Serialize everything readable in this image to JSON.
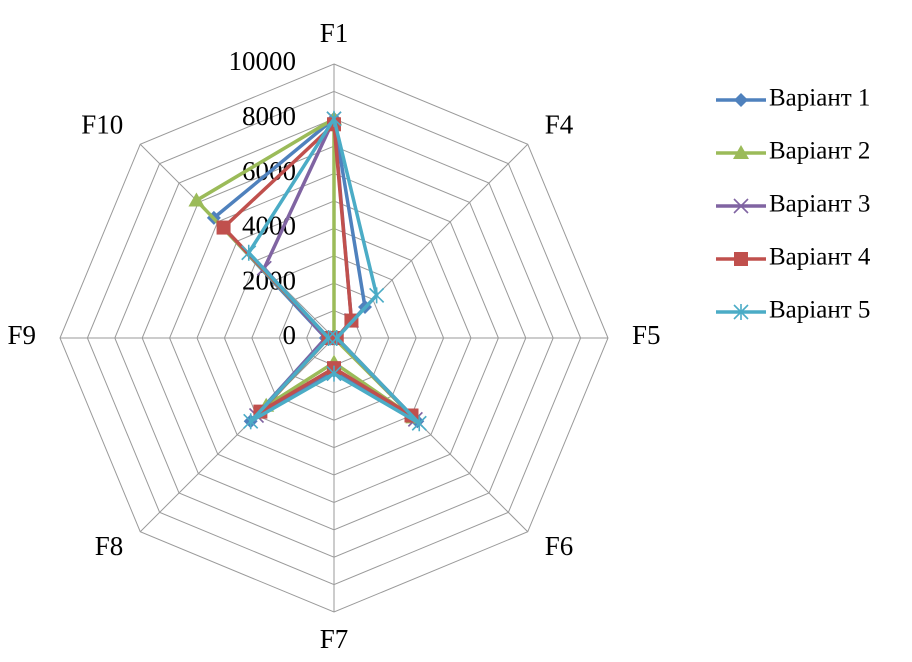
{
  "chart_data": {
    "type": "radar",
    "categories": [
      "F1",
      "F4",
      "F5",
      "F6",
      "F7",
      "F8",
      "F9",
      "F10"
    ],
    "r_ticks": [
      0,
      2000,
      4000,
      6000,
      8000,
      10000
    ],
    "r_range": [
      0,
      10000
    ],
    "minor_step": 1000,
    "grid": true,
    "legend_position": "right",
    "series": [
      {
        "name": "Варіант 1",
        "color": "#4F81BD",
        "marker": "diamond",
        "values": [
          8000,
          1600,
          100,
          4300,
          1200,
          4300,
          300,
          6200
        ]
      },
      {
        "name": "Варіант 2",
        "color": "#9BBB59",
        "marker": "triangle",
        "values": [
          8000,
          0,
          0,
          4100,
          900,
          3500,
          200,
          7100
        ]
      },
      {
        "name": "Варіант 3",
        "color": "#8064A2",
        "marker": "x",
        "values": [
          8000,
          900,
          100,
          4200,
          1300,
          4000,
          300,
          3600
        ]
      },
      {
        "name": "Варіант 4",
        "color": "#C0504D",
        "marker": "square",
        "values": [
          7800,
          900,
          100,
          4000,
          1100,
          3800,
          200,
          5700
        ]
      },
      {
        "name": "Варіант 5",
        "color": "#4BACC6",
        "marker": "star",
        "values": [
          8000,
          2200,
          100,
          4400,
          1300,
          4300,
          200,
          4400
        ]
      }
    ]
  }
}
